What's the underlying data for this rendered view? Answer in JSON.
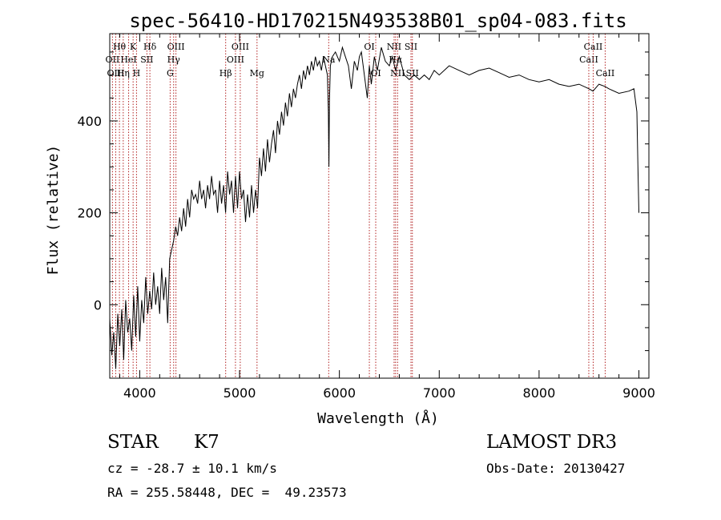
{
  "chart_data": {
    "type": "line",
    "title": "spec-56410-HD170215N493538B01_sp04-083.fits",
    "xlabel": "Wavelength (Å)",
    "ylabel": "Flux (relative)",
    "xlim": [
      3700,
      9100
    ],
    "ylim": [
      -160,
      590
    ],
    "x_ticks": [
      4000,
      5000,
      6000,
      7000,
      8000,
      9000
    ],
    "x_tick_labels": [
      "4000",
      "5000",
      "6000",
      "7000",
      "8000",
      "9000"
    ],
    "y_ticks": [
      0,
      200,
      400
    ],
    "y_tick_labels": [
      "0",
      "200",
      "400"
    ],
    "grid": false,
    "series": [
      {
        "name": "spectrum",
        "x": [
          3700,
          3720,
          3740,
          3760,
          3780,
          3800,
          3820,
          3840,
          3860,
          3880,
          3900,
          3920,
          3940,
          3960,
          3980,
          4000,
          4020,
          4040,
          4060,
          4080,
          4100,
          4120,
          4140,
          4160,
          4180,
          4200,
          4220,
          4240,
          4260,
          4280,
          4300,
          4320,
          4340,
          4360,
          4380,
          4400,
          4420,
          4440,
          4460,
          4480,
          4500,
          4520,
          4540,
          4560,
          4580,
          4600,
          4620,
          4640,
          4660,
          4680,
          4700,
          4720,
          4740,
          4760,
          4780,
          4800,
          4820,
          4840,
          4860,
          4880,
          4900,
          4920,
          4940,
          4960,
          4980,
          5000,
          5020,
          5040,
          5060,
          5080,
          5100,
          5120,
          5140,
          5160,
          5180,
          5200,
          5220,
          5240,
          5260,
          5280,
          5300,
          5320,
          5340,
          5360,
          5380,
          5400,
          5420,
          5440,
          5460,
          5480,
          5500,
          5520,
          5540,
          5560,
          5580,
          5600,
          5620,
          5640,
          5660,
          5680,
          5700,
          5720,
          5740,
          5760,
          5780,
          5800,
          5820,
          5840,
          5860,
          5880,
          5890,
          5895,
          5900,
          5910,
          5930,
          5960,
          6000,
          6030,
          6060,
          6090,
          6120,
          6150,
          6180,
          6200,
          6220,
          6250,
          6280,
          6300,
          6320,
          6350,
          6380,
          6420,
          6460,
          6500,
          6530,
          6563,
          6600,
          6650,
          6700,
          6750,
          6800,
          6850,
          6900,
          6950,
          7000,
          7100,
          7200,
          7300,
          7400,
          7500,
          7600,
          7650,
          7700,
          7800,
          7900,
          8000,
          8100,
          8200,
          8300,
          8400,
          8500,
          8540,
          8600,
          8660,
          8700,
          8800,
          8900,
          8950,
          8980,
          8990,
          9000
        ],
        "y": [
          -30,
          -110,
          -60,
          -140,
          -20,
          -90,
          -10,
          -120,
          10,
          -60,
          -30,
          -100,
          20,
          -70,
          40,
          -80,
          10,
          -40,
          60,
          -20,
          30,
          -10,
          70,
          0,
          40,
          -20,
          80,
          10,
          60,
          -40,
          100,
          120,
          140,
          170,
          150,
          190,
          160,
          210,
          170,
          230,
          190,
          250,
          230,
          240,
          220,
          270,
          230,
          250,
          210,
          260,
          230,
          280,
          240,
          250,
          200,
          270,
          220,
          260,
          200,
          290,
          240,
          270,
          200,
          280,
          210,
          290,
          230,
          250,
          180,
          240,
          190,
          260,
          200,
          250,
          210,
          320,
          280,
          340,
          290,
          360,
          310,
          350,
          380,
          330,
          400,
          370,
          420,
          390,
          440,
          410,
          460,
          430,
          470,
          450,
          480,
          500,
          470,
          510,
          490,
          520,
          500,
          530,
          510,
          540,
          520,
          530,
          510,
          540,
          520,
          500,
          420,
          300,
          440,
          520,
          540,
          550,
          530,
          560,
          540,
          520,
          470,
          530,
          510,
          540,
          550,
          500,
          450,
          520,
          480,
          540,
          510,
          560,
          530,
          520,
          540,
          510,
          540,
          500,
          490,
          500,
          490,
          500,
          490,
          510,
          500,
          520,
          510,
          500,
          510,
          515,
          505,
          500,
          495,
          500,
          490,
          485,
          490,
          480,
          475,
          480,
          470,
          465,
          480,
          475,
          470,
          460,
          465,
          470,
          420,
          300,
          200
        ]
      }
    ],
    "line_markers": [
      {
        "name": "Hθ",
        "x": 3797,
        "row": 1
      },
      {
        "name": "OII",
        "x": 3727,
        "row": 2
      },
      {
        "name": "OIII",
        "x": 3760,
        "row": 3
      },
      {
        "name": "K",
        "x": 3934,
        "row": 1
      },
      {
        "name": "HeI",
        "x": 3889,
        "row": 2
      },
      {
        "name": "Hη",
        "x": 3835,
        "row": 3
      },
      {
        "name": "SII",
        "x": 4072,
        "row": 2
      },
      {
        "name": "H",
        "x": 3968,
        "row": 3
      },
      {
        "name": "Hδ",
        "x": 4102,
        "row": 1
      },
      {
        "name": "OIII",
        "x": 4363,
        "row": 1
      },
      {
        "name": "Hγ",
        "x": 4340,
        "row": 2
      },
      {
        "name": "G",
        "x": 4305,
        "row": 3
      },
      {
        "name": "Hβ",
        "x": 4861,
        "row": 3
      },
      {
        "name": "OIII",
        "x": 4959,
        "row": 2
      },
      {
        "name": "OIII",
        "x": 5007,
        "row": 1
      },
      {
        "name": "Mg",
        "x": 5175,
        "row": 3
      },
      {
        "name": "Na",
        "x": 5893,
        "row": 2
      },
      {
        "name": "OI",
        "x": 6300,
        "row": 1
      },
      {
        "name": "OI",
        "x": 6364,
        "row": 3
      },
      {
        "name": "NII",
        "x": 6548,
        "row": 1
      },
      {
        "name": "Hα",
        "x": 6563,
        "row": 2
      },
      {
        "name": "NII",
        "x": 6583,
        "row": 3
      },
      {
        "name": "SII",
        "x": 6717,
        "row": 1
      },
      {
        "name": "SII",
        "x": 6731,
        "row": 3
      },
      {
        "name": "CaII",
        "x": 8498,
        "row": 2
      },
      {
        "name": "CaII",
        "x": 8542,
        "row": 1
      },
      {
        "name": "CaII",
        "x": 8662,
        "row": 3
      }
    ]
  },
  "info": {
    "object_class": "STAR",
    "subclass": "K7",
    "survey": "LAMOST DR3",
    "redshift": "cz = -28.7 ± 10.1 km/s",
    "obs_date": "Obs-Date: 20130427",
    "coords": "RA = 255.58448, DEC =  49.23573"
  }
}
